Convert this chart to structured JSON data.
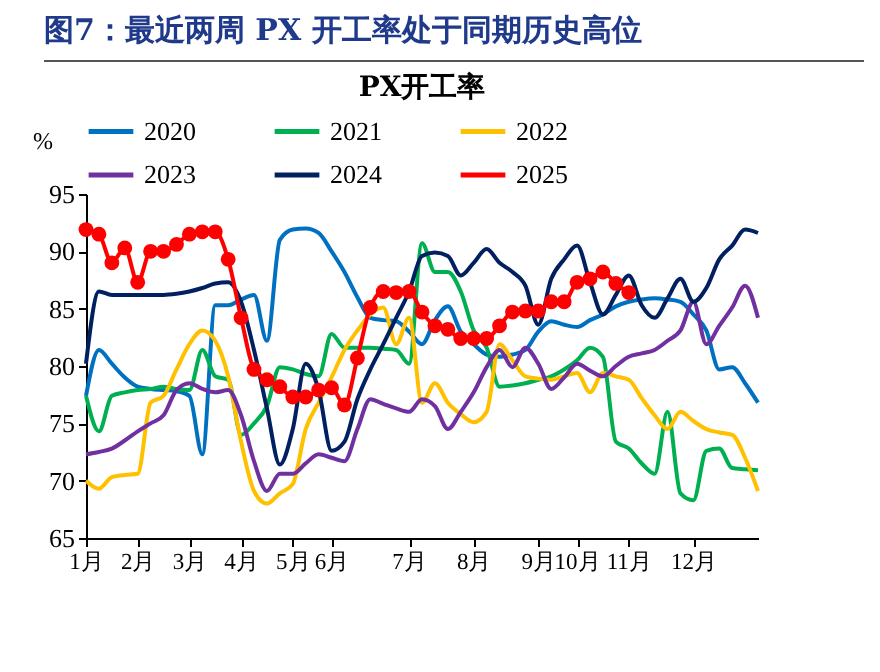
{
  "chart_data": {
    "type": "line",
    "title": "图7：最近两周 PX 开工率处于同期历史高位",
    "subtitle": "PX开工率",
    "ylabel": "%",
    "ylim": [
      65,
      95
    ],
    "yticks": [
      65,
      70,
      75,
      80,
      85,
      90,
      95
    ],
    "categories": [
      "1月",
      null,
      null,
      null,
      "2月",
      null,
      null,
      null,
      "3月",
      null,
      null,
      null,
      "4月",
      null,
      null,
      null,
      "5月",
      null,
      null,
      "6月",
      null,
      null,
      null,
      null,
      null,
      "7月",
      null,
      null,
      null,
      null,
      "8月",
      null,
      null,
      null,
      null,
      "9月",
      null,
      null,
      "10月",
      null,
      null,
      null,
      "11月",
      null,
      null,
      null,
      null,
      "12月",
      null,
      null,
      null,
      null,
      null
    ],
    "legend": "top",
    "grid": false,
    "marker": "none",
    "line_style": "solid",
    "series": [
      {
        "name": "2020",
        "color": "#0070c0",
        "values": [
          77.4,
          81.4,
          80.2,
          79,
          78.2,
          78,
          77.9,
          77.8,
          77.4,
          72.3,
          85.3,
          85.3,
          85.8,
          86.2,
          82.2,
          91,
          91.9,
          92,
          91.6,
          90,
          88.2,
          86,
          84.2,
          84,
          83.9,
          83,
          81.9,
          84,
          85.2,
          83,
          81.9,
          81,
          80.8,
          81,
          81.4,
          83,
          83.9,
          83.6,
          83.4,
          84,
          84.5,
          85.2,
          85.6,
          85.8,
          85.9,
          85.8,
          85.6,
          84.5,
          83.1,
          79.7,
          79.9,
          78.5,
          76.8
        ]
      },
      {
        "name": "2021",
        "color": "#00b050",
        "values": [
          77.4,
          74.3,
          77.4,
          77.7,
          77.9,
          78,
          78.2,
          78,
          77.9,
          81.4,
          79.1,
          78.8,
          74,
          75,
          76.5,
          79.9,
          79.7,
          79.3,
          79.1,
          82.8,
          81.6,
          81.6,
          81.6,
          81.5,
          81.4,
          80.2,
          90.7,
          88.2,
          88.2,
          86.5,
          83.1,
          81.6,
          78.2,
          78.3,
          78.5,
          78.8,
          79.1,
          79.7,
          80.5,
          81.6,
          80.8,
          73.4,
          72.8,
          71.5,
          70.6,
          76,
          68.9,
          68.3,
          72.6,
          72.8,
          71.1,
          71,
          70.9
        ]
      },
      {
        "name": "2022",
        "color": "#ffc000",
        "values": [
          70,
          69.3,
          70.3,
          70.5,
          70.6,
          76.8,
          77.4,
          79.7,
          81.9,
          83.1,
          82.2,
          79.1,
          73.4,
          69.1,
          68,
          68.9,
          69.7,
          74.5,
          76.8,
          79,
          81.4,
          83.1,
          84.5,
          85.1,
          81.9,
          84.2,
          76.8,
          78.5,
          76.8,
          75.8,
          75.1,
          76,
          81.9,
          80.5,
          79.1,
          78.9,
          78.8,
          79.1,
          79.4,
          77.7,
          79.4,
          79.1,
          78.8,
          77.2,
          75.7,
          74.5,
          76,
          75.2,
          74.5,
          74.2,
          74,
          72,
          69.1
        ]
      },
      {
        "name": "2023",
        "color": "#7030a0",
        "values": [
          72.3,
          72.5,
          72.8,
          73.5,
          74.3,
          75,
          75.7,
          77.9,
          78.5,
          78,
          77.7,
          77.9,
          75.7,
          71.7,
          69.1,
          70.6,
          70.6,
          71.5,
          72.3,
          72,
          71.7,
          74.5,
          77.1,
          76.7,
          76.3,
          76,
          77.1,
          76.5,
          74.5,
          76,
          77.7,
          79.9,
          81.4,
          79.9,
          81.6,
          80.2,
          78,
          79,
          80.2,
          79.6,
          79.1,
          80,
          80.8,
          81.1,
          81.4,
          82.2,
          83.1,
          85.6,
          81.9,
          83.5,
          85.1,
          87,
          84.2
        ]
      },
      {
        "name": "2024",
        "color": "#002060",
        "values": [
          80.2,
          86.5,
          86.2,
          86.2,
          86.2,
          86.2,
          86.2,
          86.3,
          86.5,
          86.8,
          87.2,
          87.3,
          85.6,
          81.4,
          76.3,
          71.4,
          74.5,
          80.2,
          77.9,
          72.6,
          73.4,
          77.1,
          79.7,
          81.9,
          84.2,
          86.5,
          89.6,
          89.9,
          89.6,
          87.9,
          89,
          90.2,
          89,
          88.2,
          87,
          83.6,
          87.6,
          89.3,
          90.5,
          87.3,
          84.5,
          86.2,
          87.9,
          85.3,
          84.2,
          85.9,
          87.6,
          85.6,
          86.8,
          89.3,
          90.5,
          91.9,
          91.6
        ]
      },
      {
        "name": "2025",
        "color": "#ff0000",
        "marker": "circle",
        "values": [
          91.9,
          91.5,
          89,
          90.3,
          87.3,
          90,
          90,
          90.6,
          91.5,
          91.7,
          91.7,
          89.3,
          84.2,
          79.7,
          78.8,
          78.2,
          77.3,
          77.3,
          77.9,
          78.1,
          76.6,
          80.7,
          85.1,
          86.5,
          86.4,
          86.5,
          84.7,
          83.5,
          83.2,
          82.4,
          82.4,
          82.4,
          83.5,
          84.7,
          84.8,
          84.8,
          85.6,
          85.6,
          87.3,
          87.6,
          88.2,
          87.2,
          86.4,
          null,
          null,
          null,
          null,
          null,
          null,
          null,
          null,
          null,
          null
        ]
      }
    ]
  }
}
